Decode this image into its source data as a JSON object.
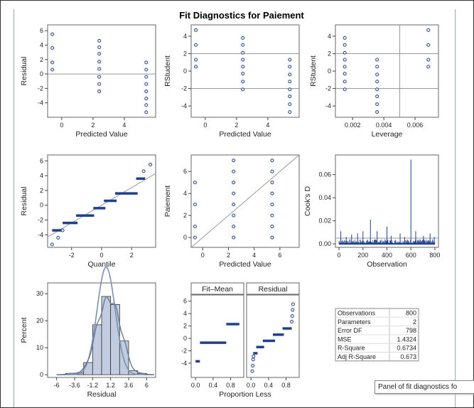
{
  "title": "Fit Diagnostics for Paiement",
  "tooltip": "Panel of fit diagnostics fo",
  "colors": {
    "marker": "#1f3f8f",
    "line": "#999999",
    "fit": "#7b8fb0",
    "bar": "#c2cce0"
  },
  "chart_data": [
    {
      "type": "scatter",
      "xlabel": "Predicted Value",
      "ylabel": "Residual",
      "xticks": [
        0,
        2,
        4
      ],
      "yticks": [
        -4,
        -2,
        0,
        2,
        4,
        6
      ],
      "xlim": [
        -0.9,
        6.0
      ],
      "ylim": [
        -6.0,
        6.8
      ],
      "reflines": {
        "y": [
          0
        ]
      },
      "groups": [
        {
          "x": -0.6,
          "y": [
            5.5,
            3.6,
            1.6,
            0.6
          ]
        },
        {
          "x": 2.4,
          "y": [
            4.6,
            3.7,
            2.8,
            1.7,
            0.7,
            -0.4,
            -1.4,
            -2.4
          ]
        },
        {
          "x": 5.4,
          "y": [
            1.6,
            0.6,
            -0.4,
            -1.4,
            -2.4,
            -3.4,
            -4.3,
            -5.3
          ]
        }
      ]
    },
    {
      "type": "scatter",
      "xlabel": "Predicted Value",
      "ylabel": "RStudent",
      "xticks": [
        0,
        2,
        4
      ],
      "yticks": [
        -4,
        -2,
        0,
        2,
        4
      ],
      "xlim": [
        -0.9,
        6.0
      ],
      "ylim": [
        -5.3,
        5.3
      ],
      "reflines": {
        "y": [
          -2,
          2
        ]
      },
      "groups": [
        {
          "x": -0.6,
          "y": [
            4.7,
            3.0,
            1.3,
            0.5
          ]
        },
        {
          "x": 2.4,
          "y": [
            3.8,
            3.0,
            2.1,
            1.3,
            0.5,
            -0.3,
            -1.2,
            -2.1
          ]
        },
        {
          "x": 5.4,
          "y": [
            1.3,
            0.5,
            -0.4,
            -1.2,
            -2.1,
            -2.9,
            -3.8,
            -4.7
          ]
        }
      ]
    },
    {
      "type": "scatter",
      "xlabel": "Leverage",
      "ylabel": "RStudent",
      "xticks": [
        0.002,
        0.004,
        0.006
      ],
      "xticklabels": [
        "0.002",
        "0.004",
        "0.006"
      ],
      "yticks": [
        -4,
        -2,
        0,
        2,
        4
      ],
      "xlim": [
        0.0009,
        0.0075
      ],
      "ylim": [
        -5.3,
        5.3
      ],
      "reflines": {
        "y": [
          -2,
          2
        ],
        "x": [
          0.00502
        ]
      },
      "groups": [
        {
          "x": 0.0015,
          "y": [
            3.8,
            3.0,
            2.1,
            1.3,
            0.5,
            -0.3,
            -1.2,
            -2.1
          ]
        },
        {
          "x": 0.00357,
          "y": [
            1.3,
            0.5,
            -0.4,
            -1.2,
            -2.1,
            -2.9,
            -3.8,
            -4.7
          ]
        },
        {
          "x": 0.00685,
          "y": [
            4.7,
            3.0,
            1.3,
            0.5
          ]
        }
      ]
    },
    {
      "type": "scatter",
      "xlabel": "Quantile",
      "ylabel": "Residual",
      "xticks": [
        -2,
        0,
        2
      ],
      "yticks": [
        -4,
        -2,
        0,
        2,
        4,
        6
      ],
      "xlim": [
        -3.6,
        3.6
      ],
      "ylim": [
        -5.7,
        6.8
      ],
      "diagonal": [
        [
          -3.6,
          -4.3
        ],
        [
          3.6,
          4.3
        ]
      ],
      "steps": [
        {
          "x": [
            -3.3,
            -2.6
          ],
          "y": -3.4
        },
        {
          "x": [
            -2.6,
            -1.6
          ],
          "y": -2.4
        },
        {
          "x": [
            -1.7,
            -0.5
          ],
          "y": -1.4
        },
        {
          "x": [
            -0.55,
            0.25
          ],
          "y": -0.4
        },
        {
          "x": [
            0.15,
            1.0
          ],
          "y": 0.6
        },
        {
          "x": [
            0.9,
            2.4
          ],
          "y": 1.6
        },
        {
          "x": [
            2.3,
            2.9
          ],
          "y": 3.6
        }
      ],
      "points": [
        [
          -3.3,
          -5.3
        ],
        [
          -2.9,
          -4.4
        ],
        [
          -2.6,
          -3.4
        ],
        [
          2.8,
          4.6
        ],
        [
          3.25,
          5.5
        ]
      ]
    },
    {
      "type": "scatter",
      "xlabel": "Predicted Value",
      "ylabel": "Paiement",
      "xticks": [
        0,
        2,
        4,
        6
      ],
      "yticks": [
        0,
        2,
        4,
        6
      ],
      "xlim": [
        -0.9,
        7.5
      ],
      "ylim": [
        -0.9,
        7.5
      ],
      "diagonal": [
        [
          -0.9,
          -0.9
        ],
        [
          7.5,
          7.5
        ]
      ],
      "groups": [
        {
          "x": -0.6,
          "y": [
            5,
            3,
            1,
            0
          ]
        },
        {
          "x": 2.4,
          "y": [
            7,
            6,
            5,
            4,
            3,
            2,
            1,
            0
          ]
        },
        {
          "x": 5.4,
          "y": [
            7,
            6,
            5,
            4,
            3,
            2,
            1,
            0
          ]
        }
      ]
    },
    {
      "type": "needle",
      "xlabel": "Observation",
      "ylabel": "Cook's D",
      "xticks": [
        0,
        200,
        400,
        600,
        800
      ],
      "yticks": [
        0.0,
        0.02,
        0.04,
        0.06
      ],
      "yticklabels": [
        "0.00",
        "0.02",
        "0.04",
        "0.06"
      ],
      "xlim": [
        -30,
        830
      ],
      "ylim": [
        -0.003,
        0.077
      ],
      "reflines": {
        "y": [
          0.005
        ]
      },
      "spikes": [
        [
          15,
          0.011
        ],
        [
          60,
          0.006
        ],
        [
          105,
          0.008
        ],
        [
          155,
          0.009
        ],
        [
          200,
          0.011
        ],
        [
          262,
          0.021
        ],
        [
          318,
          0.011
        ],
        [
          400,
          0.015
        ],
        [
          435,
          0.007
        ],
        [
          510,
          0.009
        ],
        [
          548,
          0.006
        ],
        [
          600,
          0.073
        ],
        [
          640,
          0.011
        ],
        [
          705,
          0.007
        ],
        [
          760,
          0.009
        ],
        [
          795,
          0.006
        ]
      ]
    },
    {
      "type": "histogram",
      "xlabel": "Residual",
      "ylabel": "Percent",
      "xticks": [
        -6,
        -3.6,
        -1.2,
        1.2,
        3.6,
        6
      ],
      "xticklabels": [
        "-6",
        "-3.6",
        "-1.2",
        "1.2",
        "3.6",
        "6"
      ],
      "yticks": [
        0,
        10,
        20,
        30
      ],
      "xlim": [
        -7.2,
        7.2
      ],
      "ylim": [
        -1,
        34
      ],
      "bins": [
        {
          "x0": -4.8,
          "x1": -3.6,
          "pct": 0.5
        },
        {
          "x0": -3.6,
          "x1": -2.4,
          "pct": 0.6
        },
        {
          "x0": -2.4,
          "x1": -1.2,
          "pct": 4.5
        },
        {
          "x0": -1.2,
          "x1": 0.0,
          "pct": 18.5
        },
        {
          "x0": 0.0,
          "x1": 1.2,
          "pct": 29.0
        },
        {
          "x0": 1.2,
          "x1": 2.4,
          "pct": 26.0
        },
        {
          "x0": 2.4,
          "x1": 3.6,
          "pct": 12.5
        },
        {
          "x0": 3.6,
          "x1": 4.8,
          "pct": 1.5
        },
        {
          "x0": 4.8,
          "x1": 6.0,
          "pct": 0.5
        }
      ],
      "normal": {
        "mean": 0.6,
        "sd": 1.2
      },
      "kernel": {
        "bw": 0.55
      }
    },
    {
      "type": "rf_spread",
      "xlabel": "Proportion Less",
      "panel_labels": [
        "Fit–Mean",
        "Residual"
      ],
      "xticks": [
        0.0,
        0.4,
        0.8
      ],
      "xticklabels": [
        "0.0",
        "0.4",
        "0.8"
      ],
      "yticks": [
        -4,
        -2,
        0,
        2,
        4,
        6
      ],
      "xlim": [
        -0.1,
        1.1
      ],
      "ylim": [
        -6.3,
        7.0
      ],
      "fitmean": [
        {
          "x": [
            0.0,
            0.1
          ],
          "y": -3.7
        },
        {
          "x": [
            0.1,
            0.7
          ],
          "y": -0.7
        },
        {
          "x": [
            0.7,
            1.0
          ],
          "y": 2.3
        }
      ],
      "residual_steps": [
        {
          "x": [
            0.05,
            0.15
          ],
          "y": -2.4
        },
        {
          "x": [
            0.12,
            0.3
          ],
          "y": -1.4
        },
        {
          "x": [
            0.27,
            0.55
          ],
          "y": -0.4
        },
        {
          "x": [
            0.5,
            0.75
          ],
          "y": 0.6
        },
        {
          "x": [
            0.72,
            0.93
          ],
          "y": 1.6
        }
      ],
      "residual_points": [
        [
          0.03,
          -5.3
        ],
        [
          0.04,
          -4.4
        ],
        [
          0.05,
          -3.4
        ],
        [
          0.06,
          -2.9
        ],
        [
          0.93,
          2.7
        ],
        [
          0.94,
          3.6
        ],
        [
          0.95,
          4.6
        ],
        [
          0.96,
          5.5
        ]
      ]
    },
    {
      "type": "table",
      "rows": [
        [
          "Observations",
          "800"
        ],
        [
          "Parameters",
          "2"
        ],
        [
          "Error DF",
          "798"
        ],
        [
          "MSE",
          "1.4324"
        ],
        [
          "R-Square",
          "0.6734"
        ],
        [
          "Adj R-Square",
          "0.673"
        ]
      ]
    }
  ]
}
